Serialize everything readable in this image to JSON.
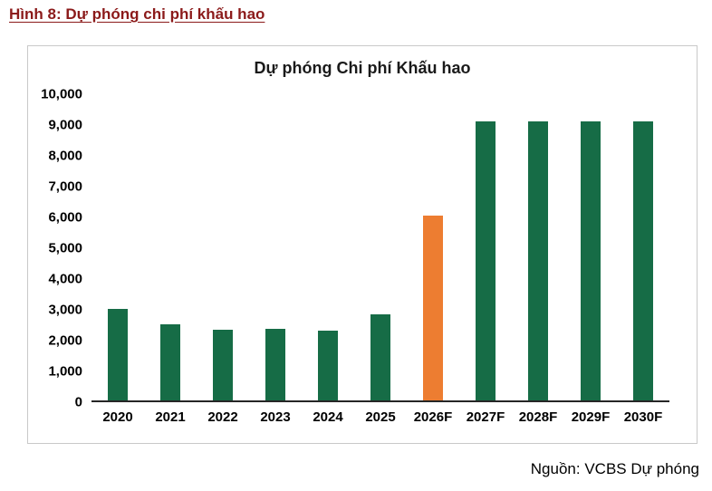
{
  "figure": {
    "heading": "Hình 8: Dự phóng chi phí khấu hao"
  },
  "source": {
    "label": "Nguồn: VCBS Dự phóng"
  },
  "colors": {
    "heading_text": "#8b1a1a",
    "bar_green": "#166c46",
    "bar_orange": "#ed7d31",
    "frame_border": "#c9c9c9",
    "axis_line": "#262626"
  },
  "chart_data": {
    "type": "bar",
    "title": "Dự phóng Chi phí Khấu hao",
    "categories": [
      "2020",
      "2021",
      "2022",
      "2023",
      "2024",
      "2025",
      "2026F",
      "2027F",
      "2028F",
      "2029F",
      "2030F"
    ],
    "values": [
      3000,
      2500,
      2320,
      2350,
      2270,
      2800,
      6050,
      9100,
      9100,
      9100,
      9100
    ],
    "highlight_index": 6,
    "bar_color": "#166c46",
    "highlight_color": "#ed7d31",
    "xlabel": "",
    "ylabel": "",
    "ylim": [
      0,
      10000
    ],
    "ytick_values": [
      0,
      1000,
      2000,
      3000,
      4000,
      5000,
      6000,
      7000,
      8000,
      9000,
      10000
    ],
    "ytick_labels": [
      "0",
      "1,000",
      "2,000",
      "3,000",
      "4,000",
      "5,000",
      "6,000",
      "7,000",
      "8,000",
      "9,000",
      "10,000"
    ],
    "grid": false,
    "legend": false
  }
}
